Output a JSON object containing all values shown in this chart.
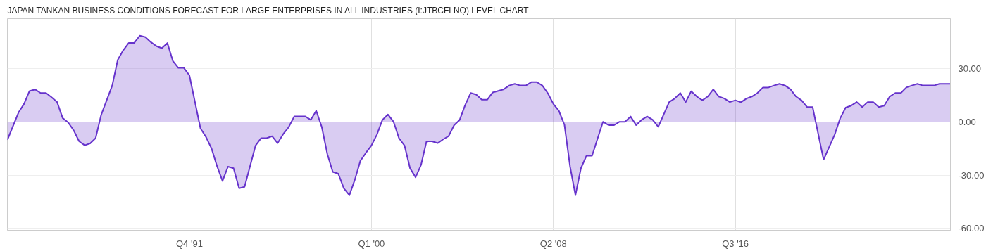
{
  "chart_data": {
    "type": "area",
    "title": "JAPAN TANKAN BUSINESS CONDITIONS FORECAST FOR LARGE ENTERPRISES IN ALL INDUSTRIES (I:JTBCFLNQ) LEVEL CHART",
    "x": [
      "1983-07",
      "1984-01",
      "1984-04",
      "1984-07",
      "1984-10",
      "1985-01",
      "1985-04",
      "1985-07",
      "1985-10",
      "1986-01",
      "1986-04",
      "1986-07",
      "1986-10",
      "1987-01",
      "1987-04",
      "1987-07",
      "1987-10",
      "1988-04",
      "1988-07",
      "1988-10",
      "1989-01",
      "1989-04",
      "1989-07",
      "1989-10",
      "1990-01",
      "1990-04",
      "1990-07",
      "1990-10",
      "1991-01",
      "1991-04",
      "1991-07",
      "1991-10",
      "1992-04",
      "1992-07",
      "1992-10",
      "1993-01",
      "1993-04",
      "1993-07",
      "1993-10",
      "1994-01",
      "1994-04",
      "1994-10",
      "1995-01",
      "1995-04",
      "1995-07",
      "1995-10",
      "1996-01",
      "1996-04",
      "1996-07",
      "1997-01",
      "1997-04",
      "1997-07",
      "1997-10",
      "1998-01",
      "1998-04",
      "1998-07",
      "1998-10",
      "1999-01",
      "1999-04",
      "1999-07",
      "1999-10",
      "2000-01",
      "2000-04",
      "2000-07",
      "2000-10",
      "2001-01",
      "2001-04",
      "2001-07",
      "2001-10",
      "2002-01",
      "2002-04",
      "2002-07",
      "2002-10",
      "2003-01",
      "2003-04",
      "2003-07",
      "2003-10",
      "2004-01",
      "2004-04",
      "2004-07",
      "2004-10",
      "2005-01",
      "2005-04",
      "2005-07",
      "2006-01",
      "2006-04",
      "2006-07",
      "2006-10",
      "2007-01",
      "2007-04",
      "2007-07",
      "2007-10",
      "2008-01",
      "2008-04",
      "2008-07",
      "2008-10",
      "2009-01",
      "2009-04",
      "2009-07",
      "2009-10",
      "2010-01",
      "2010-04",
      "2010-07",
      "2010-10",
      "2011-01",
      "2011-04",
      "2011-07",
      "2011-10",
      "2012-01",
      "2012-04",
      "2012-07",
      "2012-10",
      "2013-01",
      "2013-07",
      "2013-10",
      "2014-01",
      "2014-04",
      "2014-07",
      "2014-10",
      "2015-01",
      "2015-04",
      "2015-07",
      "2015-10",
      "2016-01",
      "2016-04",
      "2016-07",
      "2016-10",
      "2017-01",
      "2017-04",
      "2017-07",
      "2017-10",
      "2018-01",
      "2018-04",
      "2018-07",
      "2018-10",
      "2019-01",
      "2019-04",
      "2019-07",
      "2019-10",
      "2020-01",
      "2020-07",
      "2021-01",
      "2021-04",
      "2021-07",
      "2021-10",
      "2022-01",
      "2022-04",
      "2022-07",
      "2022-10",
      "2023-01",
      "2023-04",
      "2023-07",
      "2023-10",
      "2024-01",
      "2024-04",
      "2024-07",
      "2024-10",
      "2025-01",
      "2025-07",
      "2025-10",
      "2026-04"
    ],
    "series": [
      {
        "color": "#6633cc",
        "values": [
          -10.2,
          5.2,
          10,
          17.3,
          18.2,
          16.2,
          16.2,
          13.8,
          11.1,
          2.1,
          -0.3,
          -4.7,
          -11,
          -13.2,
          -12.2,
          -9.2,
          3.9,
          20.4,
          34.8,
          40.3,
          44.4,
          44.4,
          48.4,
          47.6,
          44.8,
          42.6,
          41.4,
          44.3,
          34.1,
          30.3,
          30.3,
          26.1,
          -3.7,
          -8.5,
          -15,
          -25,
          -33.3,
          -25.2,
          -26.1,
          -37.4,
          -36.6,
          -13.3,
          -9.2,
          -9.2,
          -8.1,
          -12,
          -6.9,
          -3,
          3,
          3,
          1.1,
          6.2,
          -3,
          -18.2,
          -28.2,
          -29.2,
          -37.4,
          -41.3,
          -32.6,
          -22,
          -17.5,
          -13.3,
          -7.2,
          1.1,
          4.1,
          0,
          -9.2,
          -13.3,
          -26.1,
          -31.2,
          -24.3,
          -11,
          -11,
          -12,
          -9.9,
          -8.1,
          -1.9,
          1.1,
          9.4,
          16.2,
          15.3,
          12.4,
          12.4,
          16.5,
          18.3,
          20.4,
          21.3,
          20.4,
          20.4,
          22.3,
          22.3,
          20.4,
          16,
          10,
          6.2,
          -1.7,
          -25,
          -41.3,
          -26.1,
          -19.1,
          -19.1,
          -9.6,
          0,
          -1.9,
          -1.9,
          0,
          0,
          3,
          -1.9,
          1.1,
          3,
          1.1,
          -2.8,
          11.1,
          13.1,
          16.2,
          11.1,
          17.2,
          14.2,
          12.1,
          14.2,
          18.2,
          14.2,
          13.1,
          11.1,
          12.1,
          11,
          13.1,
          14.2,
          16.2,
          19.3,
          19.3,
          20.4,
          21.3,
          20.4,
          18.2,
          14.2,
          12.1,
          8.3,
          8.3,
          -21.3,
          -7.2,
          1.9,
          8,
          9.1,
          11.1,
          8.3,
          11.1,
          11.1,
          8.3,
          9.1,
          14.2,
          16.2,
          16.2,
          19.3,
          20.4,
          21.3,
          20.4,
          20.4,
          21.3,
          21.3
        ]
      }
    ],
    "xlim": [
      "1983-07",
      "2026-04"
    ],
    "xticks": [
      {
        "value": "1991-10",
        "label": "Q4 '91"
      },
      {
        "value": "2000-01",
        "label": "Q1 '00"
      },
      {
        "value": "2008-04",
        "label": "Q2 '08"
      },
      {
        "value": "2016-07",
        "label": "Q3 '16"
      }
    ],
    "ylim": [
      -61,
      58
    ],
    "yticks": [
      {
        "value": -60,
        "label": "-60.00"
      },
      {
        "value": -30,
        "label": "-30.00"
      },
      {
        "value": 0,
        "label": "0.00"
      },
      {
        "value": 30,
        "label": "30.00"
      }
    ],
    "grid": true
  }
}
